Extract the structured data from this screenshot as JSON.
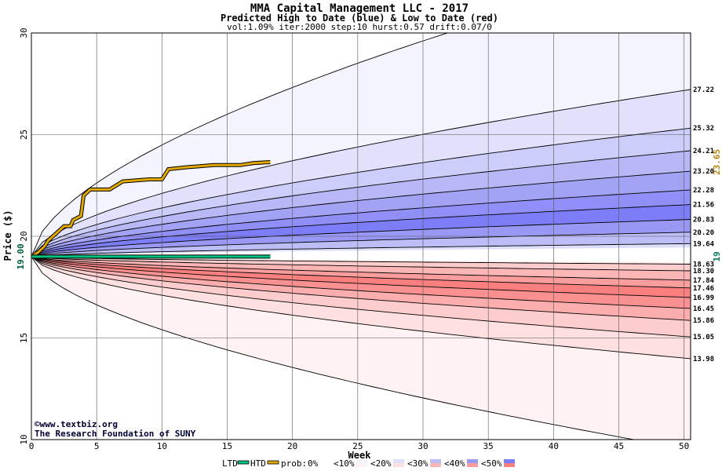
{
  "chart_data": {
    "type": "area",
    "title": "MMA Capital Management LLC - 2017",
    "subtitle": "Predicted High to Date (blue) &  Low to Date (red)",
    "params": "vol:1.09% iter:2000 step:10 hurst:0.57 drift:0.07/0",
    "xlabel": "Week",
    "ylabel": "Price ($)",
    "xlim": [
      0,
      50.5
    ],
    "ylim": [
      10,
      30
    ],
    "xticks": [
      0,
      5,
      10,
      15,
      20,
      25,
      30,
      35,
      40,
      45,
      50
    ],
    "yticks": [
      10,
      15,
      20,
      25,
      30
    ],
    "grid": true,
    "start_price": 19.0,
    "start_price_label": "19.00",
    "right_axis": [
      {
        "label": "23.65",
        "value": 23.65,
        "color": "#b8860b"
      },
      {
        "label": "19",
        "value": 19.0,
        "color": "#008060"
      }
    ],
    "high_bands": [
      {
        "label": "27.22",
        "end": 27.22
      },
      {
        "label": "25.32",
        "end": 25.32
      },
      {
        "label": "24.21",
        "end": 24.21
      },
      {
        "label": "23.20",
        "end": 23.2
      },
      {
        "label": "22.28",
        "end": 22.28
      },
      {
        "label": "21.56",
        "end": 21.56
      },
      {
        "label": "20.83",
        "end": 20.83
      },
      {
        "label": "20.20",
        "end": 20.2
      },
      {
        "label": "19.64",
        "end": 19.64
      }
    ],
    "low_bands": [
      {
        "label": "18.63",
        "end": 18.63
      },
      {
        "label": "18.30",
        "end": 18.3
      },
      {
        "label": "17.84",
        "end": 17.84
      },
      {
        "label": "17.46",
        "end": 17.46
      },
      {
        "label": "16.99",
        "end": 16.99
      },
      {
        "label": "16.45",
        "end": 16.45
      },
      {
        "label": "15.86",
        "end": 15.86
      },
      {
        "label": "15.05",
        "end": 15.05
      },
      {
        "label": "13.98",
        "end": 13.98
      }
    ],
    "outer_high_end": 33.5,
    "outer_low_end": 9.5,
    "high_fills": [
      "#f4f4fe",
      "#e1e1fb",
      "#cdcdf9",
      "#b8b8f7",
      "#a3a3f6",
      "#8f8ff7",
      "#7d7df7",
      "#9999f5",
      "#bdbdf7",
      "#dedefb"
    ],
    "low_fills": [
      "#fde0e0",
      "#fdcccc",
      "#fcb6b6",
      "#fb9d9d",
      "#fa8080",
      "#fb9090",
      "#fcaeae",
      "#fdcccc",
      "#fee0e0",
      "#fff2f2"
    ],
    "htd_series": {
      "name": "HTD",
      "color": "#e0a800",
      "points": [
        [
          0,
          19.0
        ],
        [
          0.5,
          19.2
        ],
        [
          1,
          19.5
        ],
        [
          1.3,
          19.8
        ],
        [
          2,
          20.2
        ],
        [
          2.5,
          20.5
        ],
        [
          3,
          20.5
        ],
        [
          3.2,
          20.8
        ],
        [
          3.8,
          21.0
        ],
        [
          4,
          22.0
        ],
        [
          4.5,
          22.3
        ],
        [
          6,
          22.3
        ],
        [
          7,
          22.7
        ],
        [
          9,
          22.8
        ],
        [
          10,
          22.8
        ],
        [
          10.5,
          23.3
        ],
        [
          12,
          23.4
        ],
        [
          14,
          23.5
        ],
        [
          16,
          23.5
        ],
        [
          17,
          23.6
        ],
        [
          18.3,
          23.65
        ]
      ]
    },
    "ltd_series": {
      "name": "LTD",
      "color": "#00c080",
      "points": [
        [
          0,
          19.0
        ],
        [
          1,
          19.0
        ],
        [
          3,
          19.0
        ],
        [
          18.3,
          19.0
        ]
      ]
    },
    "credit": {
      "line1": "www.textbiz.org",
      "line2": "The Research Foundation of SUNY",
      "symbol": "©"
    },
    "legend": {
      "ltd": "LTD",
      "htd": "HTD",
      "prob_prefix": "prob:",
      "items": [
        {
          "label": "0%",
          "color_top": "#ffffff",
          "color_bottom": "#ffffff"
        },
        {
          "label": "<10%",
          "color_top": "#f4f4fe",
          "color_bottom": "#fff2f2"
        },
        {
          "label": "<20%",
          "color_top": "#dedefb",
          "color_bottom": "#fde0e0"
        },
        {
          "label": "<30%",
          "color_top": "#bdbdf7",
          "color_bottom": "#fcb6b6"
        },
        {
          "label": "<40%",
          "color_top": "#9999f5",
          "color_bottom": "#fb9d9d"
        },
        {
          "label": "<50%",
          "color_top": "#7d7df7",
          "color_bottom": "#fa8080"
        }
      ]
    }
  }
}
